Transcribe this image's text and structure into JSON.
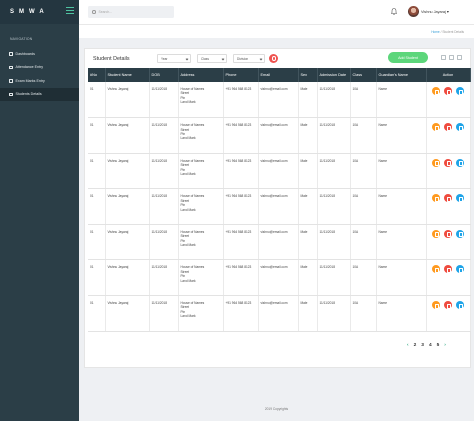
{
  "app": {
    "brand": "SMWA"
  },
  "header": {
    "search_placeholder": "Search...",
    "user_name": "Vishnu Jayaraj"
  },
  "sidebar": {
    "heading": "NAVIGATION",
    "items": [
      {
        "label": "Dashboards"
      },
      {
        "label": "Attendance Entry"
      },
      {
        "label": "Exam Marks Entry"
      },
      {
        "label": "Students Details"
      }
    ]
  },
  "breadcrumb": {
    "home": "Home",
    "separator": "/",
    "current": "Student Details"
  },
  "card": {
    "title": "Student Details",
    "filters": {
      "year": "Year",
      "class": "Class",
      "division": "Division"
    },
    "add_label": "Add Student"
  },
  "table": {
    "headers": [
      "#No",
      "Student Name",
      "DOB",
      "Address",
      "Phone",
      "Email",
      "Sex",
      "Admission Date",
      "Class",
      "Guardian's Name",
      "Action"
    ],
    "rows": [
      {
        "no": "01",
        "name": "Vishnu Jayaraj",
        "dob": "11/11/2018",
        "address": "House of Names\nStreet\nPin\nLand Mark",
        "phone": "+91 964 568 8123",
        "email": "vishnu@email.com",
        "sex": "Male",
        "admission": "11/11/2018",
        "class": "10A",
        "guardian": "Name"
      },
      {
        "no": "01",
        "name": "Vishnu Jayaraj",
        "dob": "11/11/2018",
        "address": "House of Names\nStreet\nPin\nLand Mark",
        "phone": "+91 964 568 8123",
        "email": "vishnu@email.com",
        "sex": "Male",
        "admission": "11/11/2018",
        "class": "10A",
        "guardian": "Name"
      },
      {
        "no": "01",
        "name": "Vishnu Jayaraj",
        "dob": "11/11/2018",
        "address": "House of Names\nStreet\nPin\nLand Mark",
        "phone": "+91 964 568 8123",
        "email": "vishnu@email.com",
        "sex": "Male",
        "admission": "11/11/2018",
        "class": "10A",
        "guardian": "Name"
      },
      {
        "no": "01",
        "name": "Vishnu Jayaraj",
        "dob": "11/11/2018",
        "address": "House of Names\nStreet\nPin\nLand Mark",
        "phone": "+91 964 568 8123",
        "email": "vishnu@email.com",
        "sex": "Male",
        "admission": "11/11/2018",
        "class": "10A",
        "guardian": "Name"
      },
      {
        "no": "01",
        "name": "Vishnu Jayaraj",
        "dob": "11/11/2018",
        "address": "House of Names\nStreet\nPin\nLand Mark",
        "phone": "+91 964 568 8123",
        "email": "vishnu@email.com",
        "sex": "Male",
        "admission": "11/11/2018",
        "class": "10A",
        "guardian": "Name"
      },
      {
        "no": "01",
        "name": "Vishnu Jayaraj",
        "dob": "11/11/2018",
        "address": "House of Names\nStreet\nPin\nLand Mark",
        "phone": "+91 964 568 8123",
        "email": "vishnu@email.com",
        "sex": "Male",
        "admission": "11/11/2018",
        "class": "10A",
        "guardian": "Name"
      },
      {
        "no": "01",
        "name": "Vishnu Jayaraj",
        "dob": "11/11/2018",
        "address": "House of Names\nStreet\nPin\nLand Mark",
        "phone": "+91 964 568 8123",
        "email": "vishnu@email.com",
        "sex": "Male",
        "admission": "11/11/2018",
        "class": "10A",
        "guardian": "Name"
      }
    ]
  },
  "pagination": {
    "prev": "‹",
    "pages": [
      "2",
      "3",
      "4",
      "5"
    ],
    "next": "›"
  },
  "footer": {
    "text": "2019 Copyrights"
  },
  "colors": {
    "sidebar": "#2b3e47",
    "accent": "#4fc3a1",
    "add_button": "#5cd67b",
    "edit": "#ff9a1f",
    "delete": "#ef4b3f",
    "info": "#1fa4e8"
  },
  "icons": {
    "edit": "pencil-icon",
    "delete": "trash-icon",
    "info": "info-icon"
  }
}
